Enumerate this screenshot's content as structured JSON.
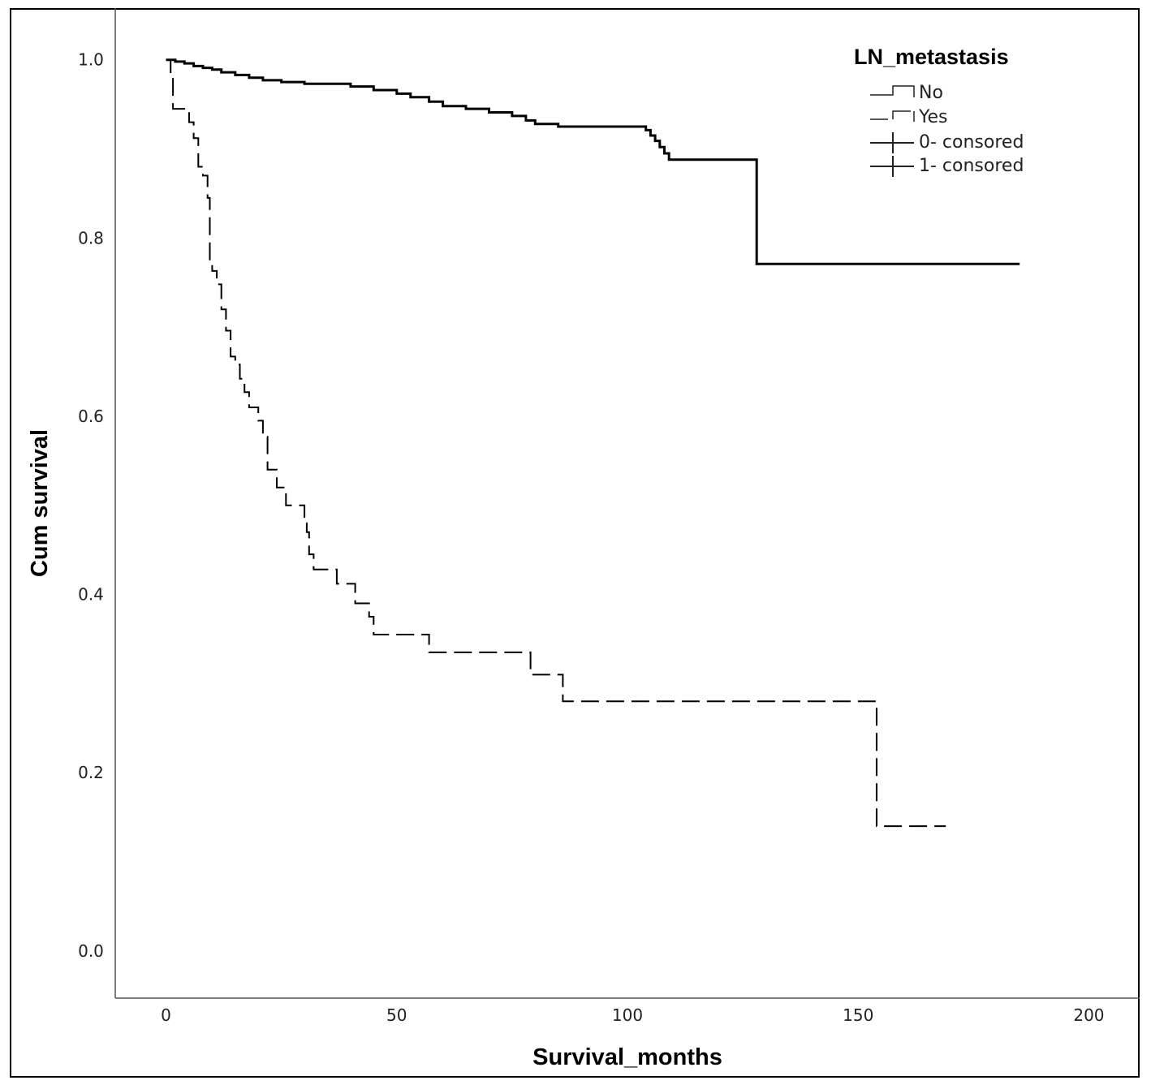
{
  "chart_data": {
    "type": "line",
    "title": "",
    "xlabel": "Survival_months",
    "ylabel": "Cum survival",
    "xlim": [
      -11,
      211
    ],
    "ylim": [
      -0.053,
      1.058
    ],
    "xticks": [
      0,
      50,
      100,
      150,
      200
    ],
    "yticks": [
      0.0,
      0.2,
      0.4,
      0.6,
      0.8,
      1.0
    ],
    "grid": false,
    "legend": {
      "title": "LN_metastasis",
      "placement": "top-right",
      "entries": [
        "No",
        "Yes",
        "0- consored",
        "1- consored"
      ]
    },
    "series": [
      {
        "name": "No",
        "style": "solid",
        "color": "#000000",
        "steps": [
          [
            0,
            1.0
          ],
          [
            2,
            0.998
          ],
          [
            4,
            0.996
          ],
          [
            6,
            0.993
          ],
          [
            8,
            0.991
          ],
          [
            10,
            0.989
          ],
          [
            12,
            0.986
          ],
          [
            15,
            0.983
          ],
          [
            18,
            0.98
          ],
          [
            21,
            0.977
          ],
          [
            25,
            0.975
          ],
          [
            30,
            0.973
          ],
          [
            40,
            0.97
          ],
          [
            45,
            0.966
          ],
          [
            50,
            0.962
          ],
          [
            53,
            0.958
          ],
          [
            57,
            0.953
          ],
          [
            60,
            0.948
          ],
          [
            65,
            0.945
          ],
          [
            70,
            0.941
          ],
          [
            75,
            0.937
          ],
          [
            78,
            0.932
          ],
          [
            80,
            0.928
          ],
          [
            85,
            0.925
          ],
          [
            104,
            0.921
          ],
          [
            105,
            0.915
          ],
          [
            106,
            0.909
          ],
          [
            107,
            0.902
          ],
          [
            108,
            0.895
          ],
          [
            109,
            0.888
          ],
          [
            128,
            0.771
          ],
          [
            185,
            0.771
          ]
        ]
      },
      {
        "name": "Yes",
        "style": "dashed",
        "color": "#000000",
        "steps": [
          [
            0,
            1.0
          ],
          [
            1,
            0.98
          ],
          [
            1.5,
            0.945
          ],
          [
            5,
            0.93
          ],
          [
            6,
            0.912
          ],
          [
            7,
            0.88
          ],
          [
            8,
            0.87
          ],
          [
            9,
            0.845
          ],
          [
            9.5,
            0.77
          ],
          [
            10,
            0.763
          ],
          [
            11,
            0.748
          ],
          [
            12,
            0.72
          ],
          [
            13,
            0.696
          ],
          [
            14,
            0.667
          ],
          [
            15,
            0.658
          ],
          [
            16,
            0.642
          ],
          [
            17,
            0.627
          ],
          [
            18,
            0.61
          ],
          [
            20,
            0.595
          ],
          [
            21,
            0.577
          ],
          [
            22,
            0.54
          ],
          [
            24,
            0.52
          ],
          [
            26,
            0.5
          ],
          [
            30,
            0.48
          ],
          [
            30.5,
            0.47
          ],
          [
            31,
            0.445
          ],
          [
            32,
            0.428
          ],
          [
            37,
            0.412
          ],
          [
            41,
            0.39
          ],
          [
            44,
            0.375
          ],
          [
            45,
            0.355
          ],
          [
            57,
            0.335
          ],
          [
            79,
            0.31
          ],
          [
            86,
            0.28
          ],
          [
            154,
            0.14
          ],
          [
            169,
            0.14
          ]
        ]
      }
    ]
  }
}
